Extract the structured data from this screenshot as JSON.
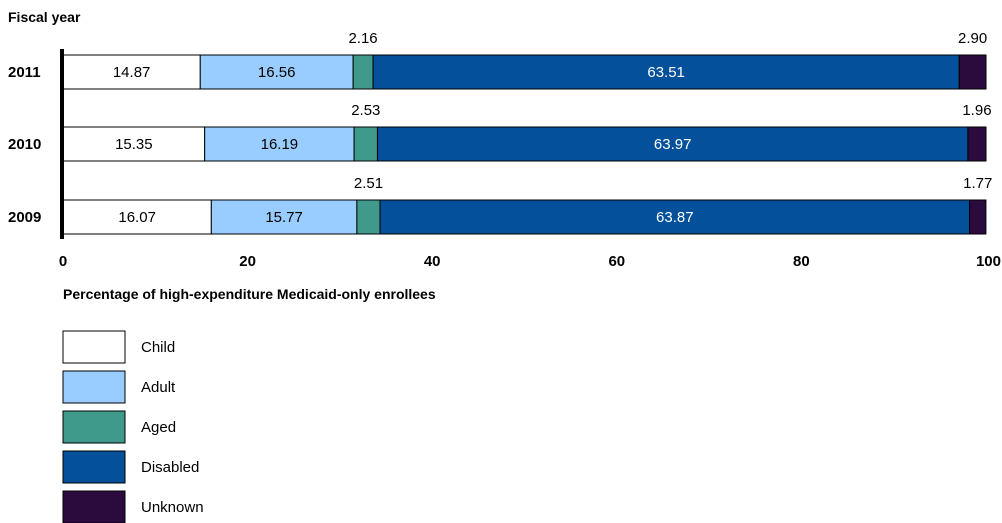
{
  "chart_data": {
    "type": "bar",
    "orientation": "horizontal",
    "stacked": true,
    "ylabel": "Fiscal year",
    "xlabel": "Percentage of high-expenditure Medicaid-only enrollees",
    "xlim": [
      0,
      100
    ],
    "xticks": [
      0,
      20,
      40,
      60,
      80,
      100
    ],
    "categories": [
      "2011",
      "2010",
      "2009"
    ],
    "series": [
      {
        "name": "Child",
        "color": "#ffffff",
        "label_color": "#000000",
        "values": [
          14.87,
          15.35,
          16.07
        ],
        "labels": [
          "14.87",
          "15.35",
          "16.07"
        ]
      },
      {
        "name": "Adult",
        "color": "#99ccff",
        "label_color": "#000000",
        "values": [
          16.56,
          16.19,
          15.77
        ],
        "labels": [
          "16.56",
          "16.19",
          "15.77"
        ]
      },
      {
        "name": "Aged",
        "color": "#3f9a8c",
        "label_color": "#000000",
        "values": [
          2.16,
          2.53,
          2.51
        ],
        "labels": [
          "2.16",
          "2.53",
          "2.51"
        ]
      },
      {
        "name": "Disabled",
        "color": "#04509a",
        "label_color": "#ffffff",
        "values": [
          63.51,
          63.97,
          63.87
        ],
        "labels": [
          "63.51",
          "63.97",
          "63.87"
        ]
      },
      {
        "name": "Unknown",
        "color": "#2b0a3d",
        "label_color": "#000000",
        "values": [
          2.9,
          1.96,
          1.77
        ],
        "labels": [
          "2.90",
          "1.96",
          "1.77"
        ]
      }
    ],
    "grid": false,
    "legend_position": "bottom-left"
  }
}
